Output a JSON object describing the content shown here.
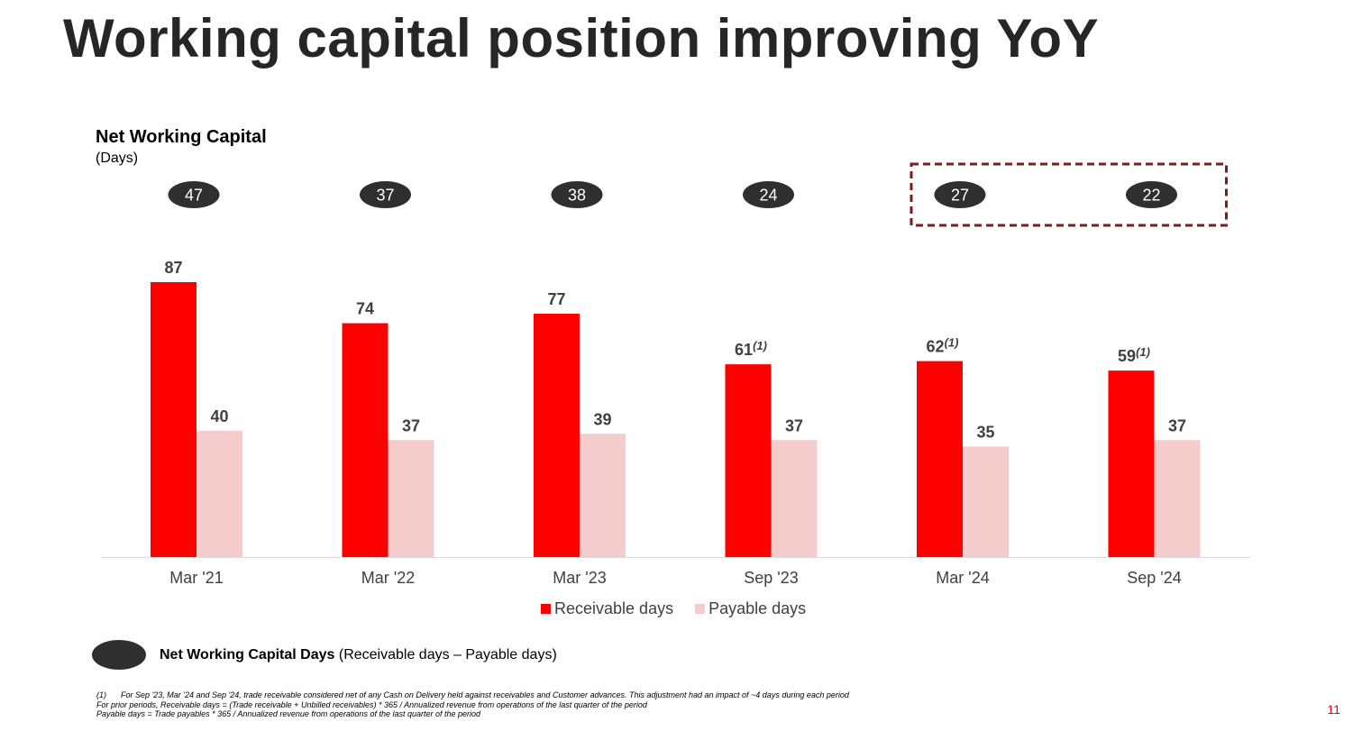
{
  "title": "Working capital position improving YoY",
  "chart_data": {
    "type": "bar",
    "title": "Net Working Capital",
    "subtitle": "(Days)",
    "categories": [
      "Mar '21",
      "Mar '22",
      "Mar '23",
      "Sep '23",
      "Mar '24",
      "Sep '24"
    ],
    "series": [
      {
        "name": "Receivable days",
        "color": "#ff0000",
        "values": [
          87,
          74,
          77,
          61,
          62,
          59
        ],
        "footnote_marks": [
          "",
          "",
          "",
          "(1)",
          "(1)",
          "(1)"
        ]
      },
      {
        "name": "Payable days",
        "color": "#f4cccc",
        "values": [
          40,
          37,
          39,
          37,
          35,
          37
        ]
      }
    ],
    "net_working_capital_days": [
      47,
      37,
      38,
      24,
      27,
      22
    ],
    "highlighted_categories": [
      "Mar '24",
      "Sep '24"
    ],
    "ylim": [
      0,
      100
    ],
    "grid": false,
    "legend_position": "bottom"
  },
  "legend": {
    "receivable_label": "Receivable days",
    "payable_label": "Payable days"
  },
  "nwc_note": {
    "bold": "Net Working Capital Days",
    "rest": " (Receivable days – Payable days)"
  },
  "footnotes": {
    "line1_num": "(1)",
    "line1": "For Sep '23, Mar '24 and Sep '24, trade receivable considered net of any Cash on Delivery held against receivables and Customer advances. This adjustment had an impact of ~4 days during each period",
    "line2": "For prior periods, Receivable days = (Trade receivable + Unbilled receivables) * 365 /  Annualized revenue from operations of the last quarter of the period",
    "line3": "Payable days = Trade payables * 365 /  Annualized revenue from operations of the last quarter of the period"
  },
  "page_number": "11",
  "colors": {
    "title": "#262626",
    "receivable": "#ff0000",
    "payable": "#f4cccc",
    "bubble": "#2f2f2f",
    "highlight_box": "#7b1d1d",
    "page_number": "#e8000b"
  }
}
